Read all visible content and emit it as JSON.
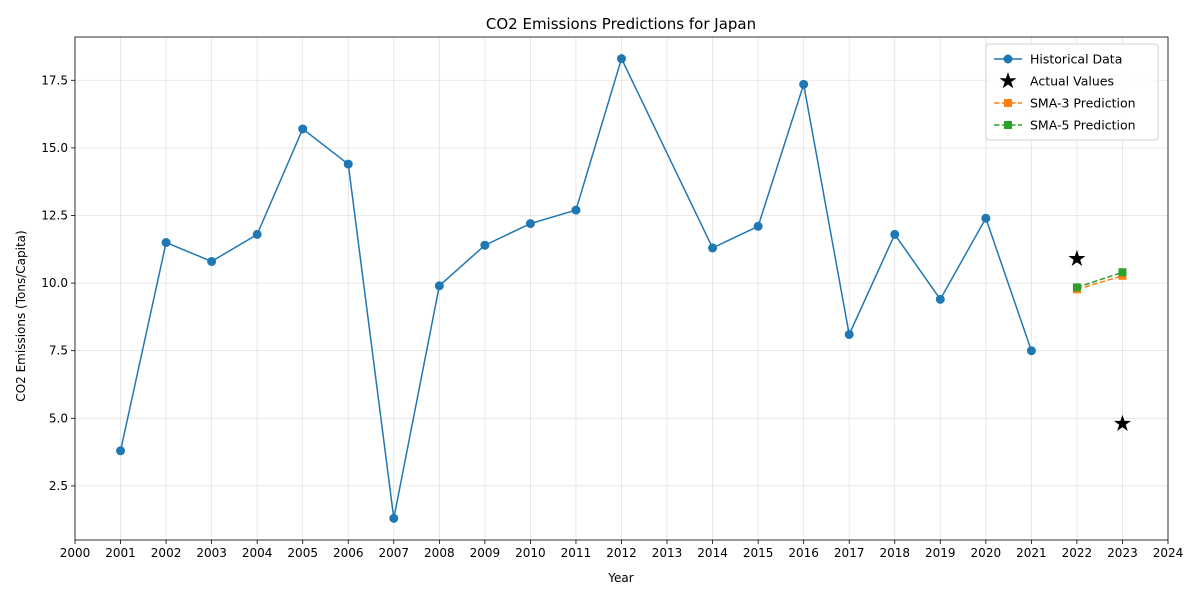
{
  "chart_data": {
    "type": "line",
    "title": "CO2 Emissions Predictions for Japan",
    "xlabel": "Year",
    "ylabel": "CO2 Emissions (Tons/Capita)",
    "xlim": [
      2000,
      2024
    ],
    "ylim": [
      0.5,
      19.1
    ],
    "x_ticks": [
      2000,
      2001,
      2002,
      2003,
      2004,
      2005,
      2006,
      2007,
      2008,
      2009,
      2010,
      2011,
      2012,
      2013,
      2014,
      2015,
      2016,
      2017,
      2018,
      2019,
      2020,
      2021,
      2022,
      2023,
      2024
    ],
    "y_ticks": [
      2.5,
      5.0,
      7.5,
      10.0,
      12.5,
      15.0,
      17.5
    ],
    "y_tick_labels": [
      "2.5",
      "5.0",
      "7.5",
      "10.0",
      "12.5",
      "15.0",
      "17.5"
    ],
    "grid": true,
    "legend_position": "top-right",
    "series": [
      {
        "name": "Historical Data",
        "style": "line-circle",
        "color": "#1f77b4",
        "x": [
          2001,
          2002,
          2003,
          2004,
          2005,
          2006,
          2007,
          2008,
          2009,
          2010,
          2011,
          2012,
          2014,
          2015,
          2016,
          2017,
          2018,
          2019,
          2020,
          2021
        ],
        "values": [
          3.8,
          11.5,
          10.8,
          11.8,
          15.7,
          14.4,
          1.3,
          9.9,
          11.4,
          12.2,
          12.7,
          18.3,
          11.3,
          12.1,
          17.35,
          8.1,
          11.8,
          9.4,
          12.4,
          7.5
        ]
      },
      {
        "name": "Actual Values",
        "style": "star",
        "color": "#000000",
        "x": [
          2022,
          2023
        ],
        "values": [
          10.9,
          4.8
        ]
      },
      {
        "name": "SMA-3 Prediction",
        "style": "dashed-square",
        "color": "#ff7f0e",
        "x": [
          2022,
          2023
        ],
        "values": [
          9.77,
          10.27
        ]
      },
      {
        "name": "SMA-5 Prediction",
        "style": "dashed-square",
        "color": "#2ca02c",
        "x": [
          2022,
          2023
        ],
        "values": [
          9.84,
          10.4
        ]
      }
    ]
  }
}
